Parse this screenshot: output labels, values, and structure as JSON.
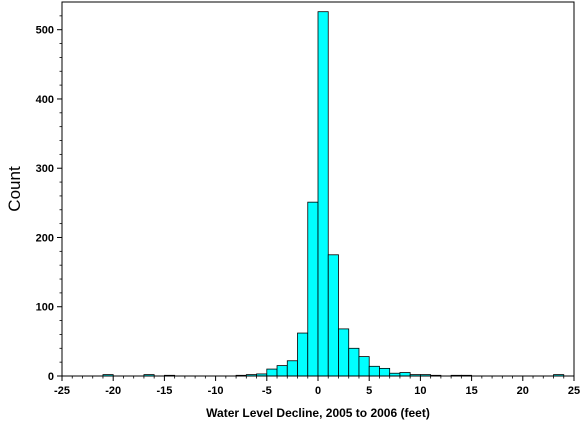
{
  "chart_data": {
    "type": "bar",
    "title": "",
    "xlabel": "Water Level Decline, 2005 to 2006 (feet)",
    "ylabel": "Count",
    "xlim": [
      -25,
      25
    ],
    "ylim": [
      0,
      540
    ],
    "bin_width": 1,
    "x_ticks": [
      -25,
      -20,
      -15,
      -10,
      -5,
      0,
      5,
      10,
      15,
      20,
      25
    ],
    "x_tick_labels": [
      "-25",
      "-20",
      "-15",
      "-10",
      "-5",
      "0",
      "5",
      "10",
      "15",
      "20",
      "25"
    ],
    "y_ticks": [
      0,
      100,
      200,
      300,
      400,
      500
    ],
    "y_tick_labels": [
      "0",
      "100",
      "200",
      "300",
      "400",
      "500"
    ],
    "bar_color": "#00ffff",
    "bar_edge_color": "#000000",
    "grid": false,
    "bins": [
      {
        "x0": -21,
        "x1": -20,
        "count": 2
      },
      {
        "x0": -17,
        "x1": -16,
        "count": 2
      },
      {
        "x0": -15,
        "x1": -14,
        "count": 1
      },
      {
        "x0": -8,
        "x1": -7,
        "count": 1
      },
      {
        "x0": -7,
        "x1": -6,
        "count": 2
      },
      {
        "x0": -6,
        "x1": -5,
        "count": 3
      },
      {
        "x0": -5,
        "x1": -4,
        "count": 10
      },
      {
        "x0": -4,
        "x1": -3,
        "count": 15
      },
      {
        "x0": -3,
        "x1": -2,
        "count": 22
      },
      {
        "x0": -2,
        "x1": -1,
        "count": 62
      },
      {
        "x0": -1,
        "x1": 0,
        "count": 251
      },
      {
        "x0": 0,
        "x1": 1,
        "count": 526
      },
      {
        "x0": 1,
        "x1": 2,
        "count": 175
      },
      {
        "x0": 2,
        "x1": 3,
        "count": 68
      },
      {
        "x0": 3,
        "x1": 4,
        "count": 40
      },
      {
        "x0": 4,
        "x1": 5,
        "count": 28
      },
      {
        "x0": 5,
        "x1": 6,
        "count": 14
      },
      {
        "x0": 6,
        "x1": 7,
        "count": 11
      },
      {
        "x0": 7,
        "x1": 8,
        "count": 4
      },
      {
        "x0": 8,
        "x1": 9,
        "count": 5
      },
      {
        "x0": 9,
        "x1": 10,
        "count": 2
      },
      {
        "x0": 10,
        "x1": 11,
        "count": 2
      },
      {
        "x0": 11,
        "x1": 12,
        "count": 1
      },
      {
        "x0": 13,
        "x1": 14,
        "count": 1
      },
      {
        "x0": 14,
        "x1": 15,
        "count": 1
      },
      {
        "x0": 23,
        "x1": 24,
        "count": 2
      }
    ]
  }
}
